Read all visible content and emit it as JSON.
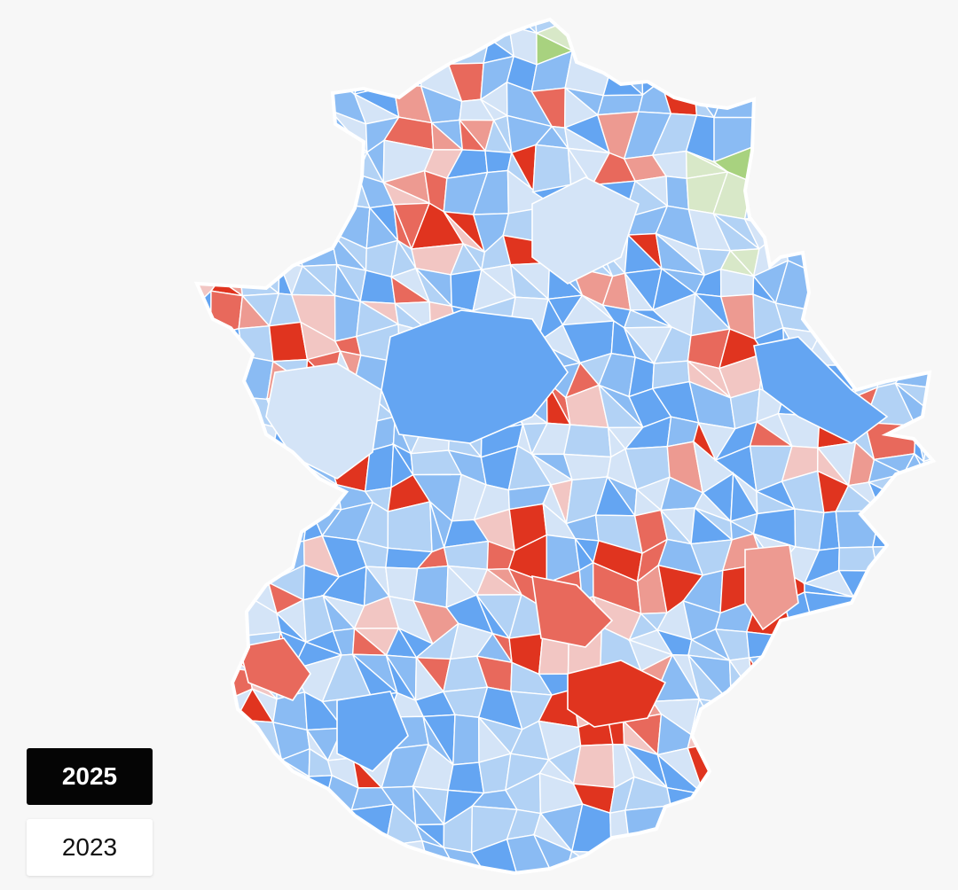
{
  "year_selector": {
    "selected": "2025",
    "options": [
      "2025",
      "2023"
    ]
  },
  "legend_colors": {
    "strong_left": "#e0341f",
    "medium_left": "#e8695c",
    "light_left": "#ed9a91",
    "faint_left": "#f2c6c3",
    "faint_right": "#d4e4f7",
    "light_right": "#b2d2f5",
    "medium_right": "#8abbf3",
    "strong_right": "#64a5f2",
    "green_light": "#d8e8c8",
    "green_medium": "#a8d27f",
    "border": "#ffffff"
  }
}
